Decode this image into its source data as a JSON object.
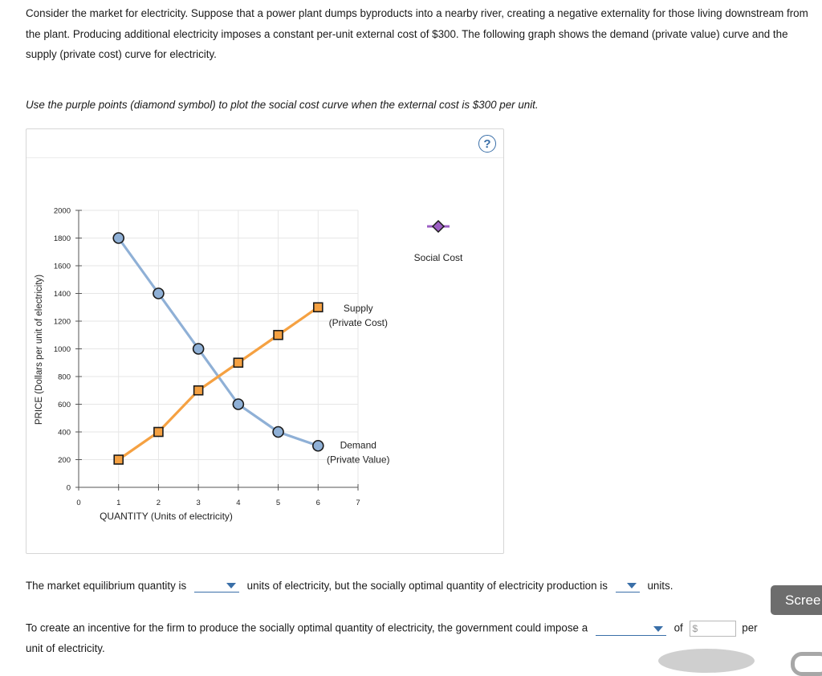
{
  "intro_text": "Consider the market for electricity. Suppose that a power plant dumps byproducts into a nearby river, creating a negative externality for those living downstream from the plant. Producing additional electricity imposes a constant per-unit external cost of $300. The following graph shows the demand (private value) curve and the supply (private cost) curve for electricity.",
  "instruction_text": "Use the purple points (diamond symbol) to plot the social cost curve when the external cost is $300 per unit.",
  "help_label": "?",
  "chart_data": {
    "type": "line",
    "xlabel": "QUANTITY (Units of electricity)",
    "ylabel": "PRICE (Dollars per unit of electricity)",
    "xlim": [
      0,
      7
    ],
    "ylim": [
      0,
      2000
    ],
    "x_ticks": [
      "0",
      "1",
      "2",
      "3",
      "4",
      "5",
      "6",
      "7"
    ],
    "y_ticks": [
      "0",
      "200",
      "400",
      "600",
      "800",
      "1000",
      "1200",
      "1400",
      "1600",
      "1800",
      "2000"
    ],
    "grid": true,
    "series": [
      {
        "name": "Demand (Private Value)",
        "label_lines": [
          "Demand",
          "(Private Value)"
        ],
        "marker": "circle",
        "color": "#8fb0d6",
        "marker_fill": "#8fb0d6",
        "x": [
          1,
          2,
          3,
          4,
          5,
          6
        ],
        "y": [
          1800,
          1400,
          1000,
          600,
          400,
          300
        ]
      },
      {
        "name": "Supply (Private Cost)",
        "label_lines": [
          "Supply",
          "(Private Cost)"
        ],
        "marker": "square",
        "color": "#f5a142",
        "marker_fill": "#f5a142",
        "x": [
          1,
          2,
          3,
          4,
          5,
          6
        ],
        "y": [
          200,
          400,
          700,
          900,
          1100,
          1300
        ]
      }
    ],
    "palette": {
      "name": "Social Cost",
      "marker": "diamond",
      "color": "#9d5fc4"
    }
  },
  "questions": {
    "q1_part1": "The market equilibrium quantity is",
    "q1_part2": "units of electricity, but the socially optimal quantity of electricity production is",
    "q1_part3": "units.",
    "q2_part1": "To create an incentive for the firm to produce the socially optimal quantity of electricity, the government could impose a",
    "q2_of": "of",
    "q2_currency": "$",
    "q2_per": "per",
    "q2_tail": "unit of electricity."
  },
  "screen_button_label": "Scree"
}
